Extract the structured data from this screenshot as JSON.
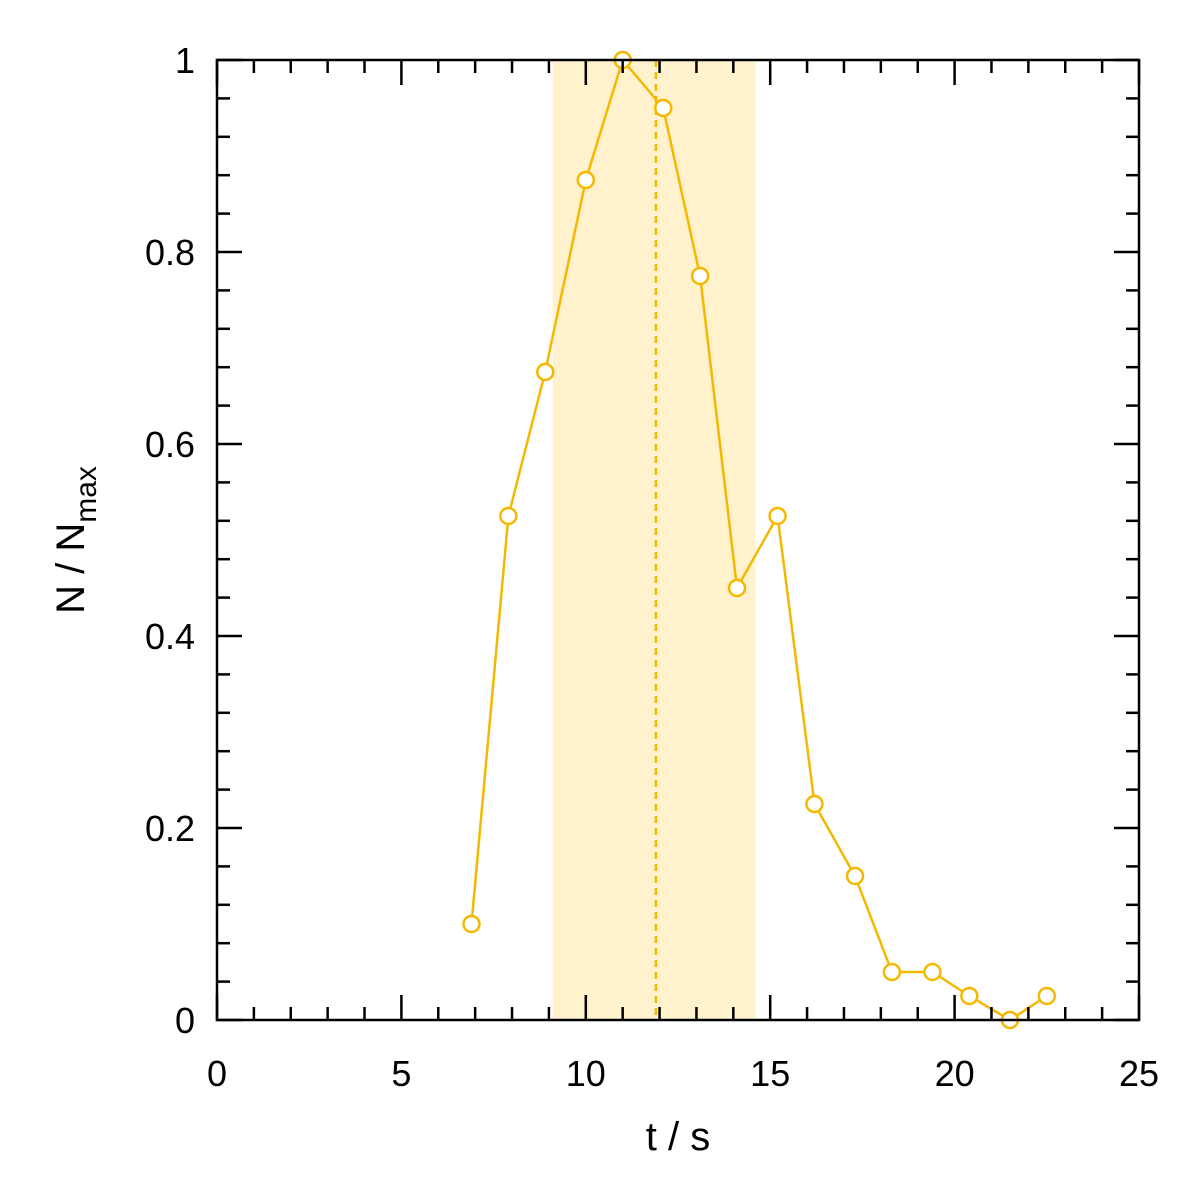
{
  "chart_data": {
    "type": "line",
    "title": "",
    "xlabel": "t / s",
    "ylabel": {
      "main": "N / N",
      "subscript": "max"
    },
    "xlim": [
      0,
      25
    ],
    "ylim": [
      0,
      1
    ],
    "x_ticks": [
      "0",
      "5",
      "10",
      "15",
      "20",
      "25"
    ],
    "y_ticks": [
      "0",
      "0.2",
      "0.4",
      "0.6",
      "0.8",
      "1"
    ],
    "x_tick_values": [
      0,
      5,
      10,
      15,
      20,
      25
    ],
    "y_tick_values": [
      0,
      0.2,
      0.4,
      0.6,
      0.8,
      1
    ],
    "x_minor_step": 1,
    "y_minor_step": 0.04,
    "grid": false,
    "shaded_region": {
      "x_start": 9.1,
      "x_end": 14.6
    },
    "reference_line_x": 11.9,
    "series": [
      {
        "x": [
          6.9,
          7.9,
          8.9,
          10.0,
          11.0,
          12.1,
          13.1,
          14.1,
          15.2,
          16.2,
          17.3,
          18.3,
          19.4,
          20.4,
          21.5,
          22.5
        ],
        "y": [
          0.1,
          0.525,
          0.675,
          0.875,
          1.0,
          0.95,
          0.775,
          0.45,
          0.525,
          0.225,
          0.15,
          0.05,
          0.05,
          0.025,
          0.0,
          0.025
        ]
      }
    ],
    "colors": {
      "series": "#f5b800",
      "shade": "#fff2cc",
      "axis": "#000000",
      "marker_fill": "#ffffff"
    }
  }
}
